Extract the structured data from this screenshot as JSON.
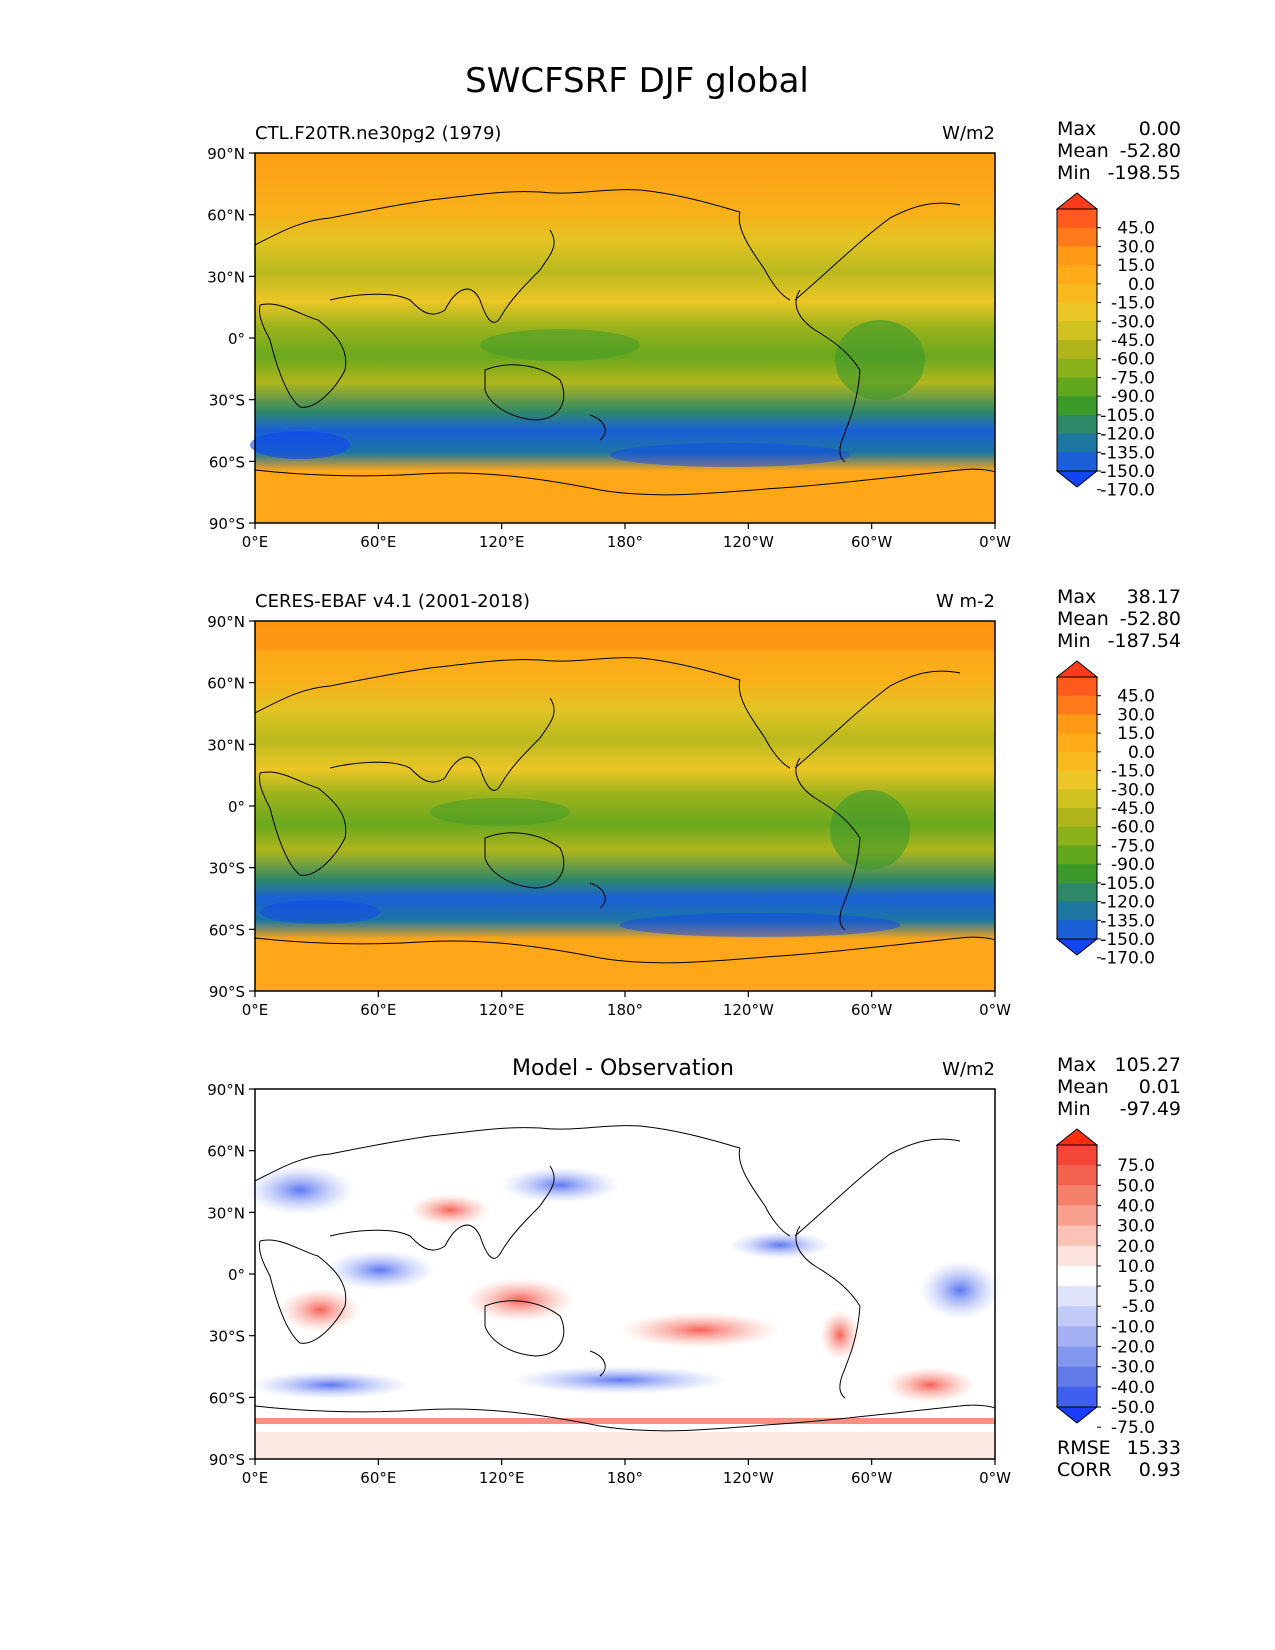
{
  "title": "SWCFSRF DJF global",
  "axes": {
    "lat_ticks": [
      "90°N",
      "60°N",
      "30°N",
      "0°",
      "30°S",
      "60°S",
      "90°S"
    ],
    "lon_ticks": [
      "0°E",
      "60°E",
      "120°E",
      "180°",
      "120°W",
      "60°W",
      "0°W"
    ],
    "lat_range": [
      -90,
      90
    ],
    "lon_range": [
      0,
      360
    ]
  },
  "panels": [
    {
      "id": "model",
      "left_label": "CTL.F20TR.ne30pg2 (1979)",
      "center_title": "",
      "units": "W/m2",
      "stats": [
        {
          "label": "Max",
          "value": "0.00"
        },
        {
          "label": "Mean",
          "value": "-52.80"
        },
        {
          "label": "Min",
          "value": "-198.55"
        }
      ],
      "colorbar": {
        "labels": [
          "45.0",
          "30.0",
          "15.0",
          "0.0",
          "-15.0",
          "-30.0",
          "-45.0",
          "-60.0",
          "-75.0",
          "-90.0",
          "-105.0",
          "-120.0",
          "-135.0",
          "-150.0",
          "-170.0"
        ],
        "colors": [
          "#ff3b1a",
          "#ff5a1e",
          "#ff7a1a",
          "#ff9a14",
          "#ffaa18",
          "#f7b91e",
          "#ecc626",
          "#cfc11f",
          "#b0b51c",
          "#8cb21b",
          "#62a71e",
          "#3c9a2b",
          "#2e8868",
          "#1d76a0",
          "#1a5fd8",
          "#1145f2"
        ]
      },
      "extra_stats": []
    },
    {
      "id": "obs",
      "left_label": "CERES-EBAF v4.1 (2001-2018)",
      "center_title": "",
      "units": "W m-2",
      "stats": [
        {
          "label": "Max",
          "value": "38.17"
        },
        {
          "label": "Mean",
          "value": "-52.80"
        },
        {
          "label": "Min",
          "value": "-187.54"
        }
      ],
      "colorbar": {
        "labels": [
          "45.0",
          "30.0",
          "15.0",
          "0.0",
          "-15.0",
          "-30.0",
          "-45.0",
          "-60.0",
          "-75.0",
          "-90.0",
          "-105.0",
          "-120.0",
          "-135.0",
          "-150.0",
          "-170.0"
        ],
        "colors": [
          "#ff3b1a",
          "#ff5a1e",
          "#ff7a1a",
          "#ff9a14",
          "#ffaa18",
          "#f7b91e",
          "#ecc626",
          "#cfc11f",
          "#b0b51c",
          "#8cb21b",
          "#62a71e",
          "#3c9a2b",
          "#2e8868",
          "#1d76a0",
          "#1a5fd8",
          "#1145f2"
        ]
      },
      "extra_stats": []
    },
    {
      "id": "diff",
      "left_label": "",
      "center_title": "Model - Observation",
      "units": "W/m2",
      "stats": [
        {
          "label": "Max",
          "value": "105.27"
        },
        {
          "label": "Mean",
          "value": "0.01"
        },
        {
          "label": "Min",
          "value": "-97.49"
        }
      ],
      "colorbar": {
        "labels": [
          "75.0",
          "50.0",
          "40.0",
          "30.0",
          "20.0",
          "10.0",
          "5.0",
          "-5.0",
          "-10.0",
          "-20.0",
          "-30.0",
          "-40.0",
          "-50.0",
          "-75.0"
        ],
        "colors": [
          "#ff2e10",
          "#f5463a",
          "#f2624f",
          "#f4806c",
          "#f7a08f",
          "#fbc2b6",
          "#fde3dd",
          "#ffffff",
          "#dfe4fb",
          "#c2cbf7",
          "#a3b1f3",
          "#8497ef",
          "#627be9",
          "#3f5ff0",
          "#1a3cff"
        ]
      },
      "extra_stats": [
        {
          "label": "RMSE",
          "value": "15.33"
        },
        {
          "label": "CORR",
          "value": "0.93"
        }
      ]
    }
  ]
}
